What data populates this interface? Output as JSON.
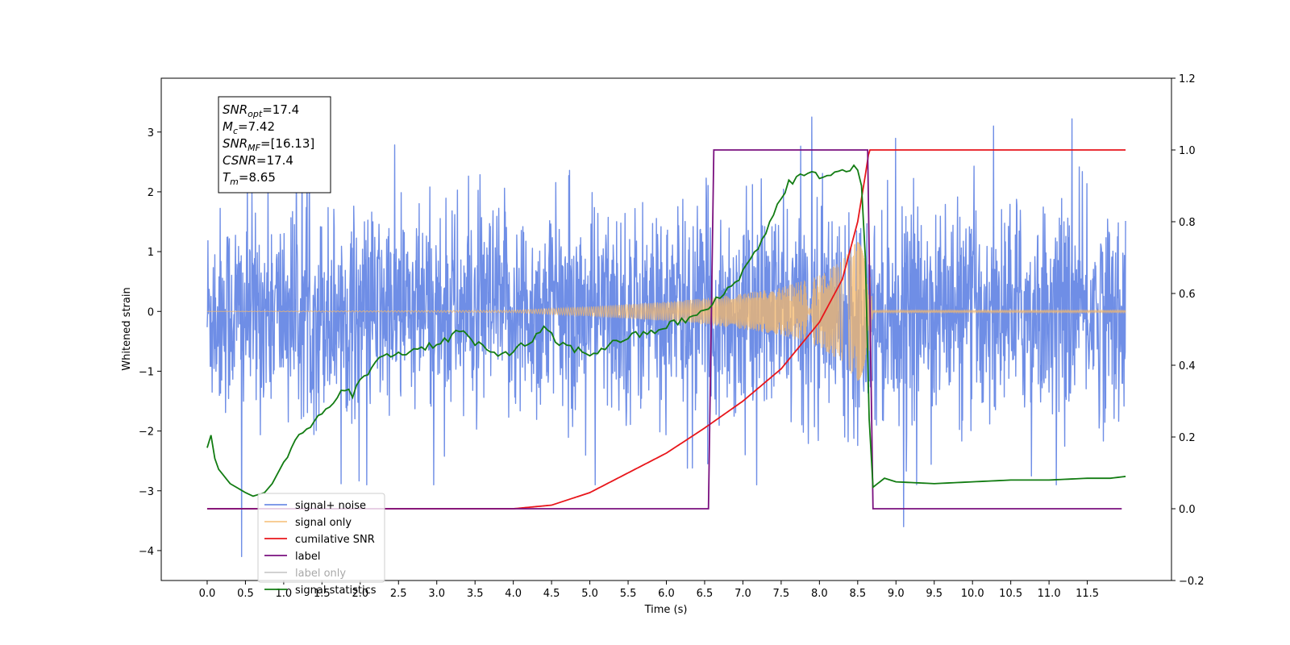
{
  "chart_data": {
    "type": "line",
    "title": "",
    "xlabel": "Time (s)",
    "ylabel": "Whitened strain",
    "xlim": [
      -0.6,
      12.6
    ],
    "ylim": [
      -4.5,
      3.9
    ],
    "ylim_right": [
      -0.2,
      1.2
    ],
    "x_ticks": [
      "0.0",
      "0.5",
      "1.0",
      "1.5",
      "2.0",
      "2.5",
      "3.0",
      "3.5",
      "4.0",
      "4.5",
      "5.0",
      "5.5",
      "6.0",
      "6.5",
      "7.0",
      "7.5",
      "8.0",
      "8.5",
      "9.0",
      "9.5",
      "10.0",
      "10.5",
      "11.0",
      "11.5"
    ],
    "y_ticks_left": [
      "3",
      "2",
      "1",
      "0",
      "−1",
      "−2",
      "−3",
      "−4"
    ],
    "y_ticks_right": [
      "1.2",
      "1.0",
      "0.8",
      "0.6",
      "0.4",
      "0.2",
      "0.0",
      "−0.2"
    ],
    "grid": false,
    "legend_position": "lower-left",
    "colors": {
      "signal_plus_noise": "#6f8ee6",
      "signal_only": "#f5b86a",
      "cumulative_snr": "#e8161b",
      "label": "#7a107f",
      "label_only": "#cccccc",
      "signal_statistics": "#127c12"
    },
    "series": [
      {
        "name": "signal+ noise",
        "axis": "left",
        "x_range": [
          0.0,
          12.0
        ],
        "envelope_typical": [
          -1.6,
          1.6
        ],
        "peak_max": 3.25,
        "peak_min": -4.1
      },
      {
        "name": "signal only",
        "axis": "left",
        "x_range": [
          0.0,
          12.0
        ],
        "description_points": {
          "x": [
            0.0,
            4.0,
            5.0,
            6.0,
            6.5,
            7.0,
            7.5,
            8.0,
            8.3,
            8.5,
            8.6,
            8.65,
            8.7,
            12.0
          ],
          "amplitude": [
            0.0,
            0.02,
            0.08,
            0.16,
            0.22,
            0.3,
            0.4,
            0.6,
            0.85,
            1.2,
            1.4,
            0.8,
            0.02,
            0.02
          ]
        }
      },
      {
        "name": "cumilative SNR",
        "axis": "right",
        "x": [
          0.0,
          4.0,
          4.5,
          5.0,
          5.5,
          6.0,
          6.5,
          7.0,
          7.5,
          8.0,
          8.3,
          8.5,
          8.6,
          8.65,
          12.0
        ],
        "y": [
          0.0,
          0.0,
          0.01,
          0.045,
          0.1,
          0.155,
          0.225,
          0.3,
          0.39,
          0.52,
          0.64,
          0.8,
          0.93,
          1.0,
          1.0
        ]
      },
      {
        "name": "label",
        "axis": "right",
        "x": [
          0.0,
          6.55,
          6.62,
          8.63,
          8.7,
          11.95
        ],
        "y": [
          0.0,
          0.0,
          1.0,
          1.0,
          0.0,
          0.0
        ]
      },
      {
        "name": "label only",
        "axis": "right",
        "x": [],
        "y": []
      },
      {
        "name": "signal statistics",
        "axis": "right",
        "x": [
          0.0,
          0.05,
          0.1,
          0.15,
          0.3,
          0.5,
          0.6,
          0.75,
          0.85,
          1.0,
          1.2,
          1.4,
          1.6,
          1.7,
          1.8,
          1.9,
          2.0,
          2.2,
          2.3,
          2.5,
          2.8,
          3.0,
          3.2,
          3.3,
          3.5,
          3.75,
          4.0,
          4.25,
          4.4,
          4.6,
          5.0,
          5.5,
          5.8,
          6.0,
          6.3,
          6.5,
          6.6,
          6.8,
          7.0,
          7.2,
          7.4,
          7.6,
          7.8,
          8.0,
          8.1,
          8.3,
          8.5,
          8.55,
          8.6,
          8.65,
          8.7,
          8.85,
          9.0,
          9.5,
          10.0,
          10.5,
          11.0,
          11.5,
          11.8,
          12.0
        ],
        "y": [
          0.17,
          0.205,
          0.14,
          0.11,
          0.07,
          0.045,
          0.035,
          0.045,
          0.07,
          0.13,
          0.2,
          0.24,
          0.28,
          0.32,
          0.34,
          0.31,
          0.36,
          0.4,
          0.43,
          0.43,
          0.45,
          0.46,
          0.48,
          0.5,
          0.46,
          0.43,
          0.44,
          0.47,
          0.5,
          0.46,
          0.43,
          0.48,
          0.49,
          0.51,
          0.53,
          0.55,
          0.57,
          0.61,
          0.66,
          0.73,
          0.82,
          0.91,
          0.93,
          0.93,
          0.93,
          0.94,
          0.95,
          0.9,
          0.7,
          0.25,
          0.06,
          0.085,
          0.075,
          0.07,
          0.075,
          0.08,
          0.08,
          0.085,
          0.085,
          0.09
        ]
      }
    ],
    "info_box": [
      {
        "base": "SNR",
        "sub": "opt",
        "value": "=17.4"
      },
      {
        "base": "M",
        "sub": "c",
        "value": "=7.42"
      },
      {
        "base": "SNR",
        "sub": "MF",
        "value": "=[16.13]"
      },
      {
        "base": "CSNR",
        "sub": "",
        "value": "=17.4"
      },
      {
        "base": "T",
        "sub": "m",
        "value": "=8.65"
      }
    ]
  }
}
